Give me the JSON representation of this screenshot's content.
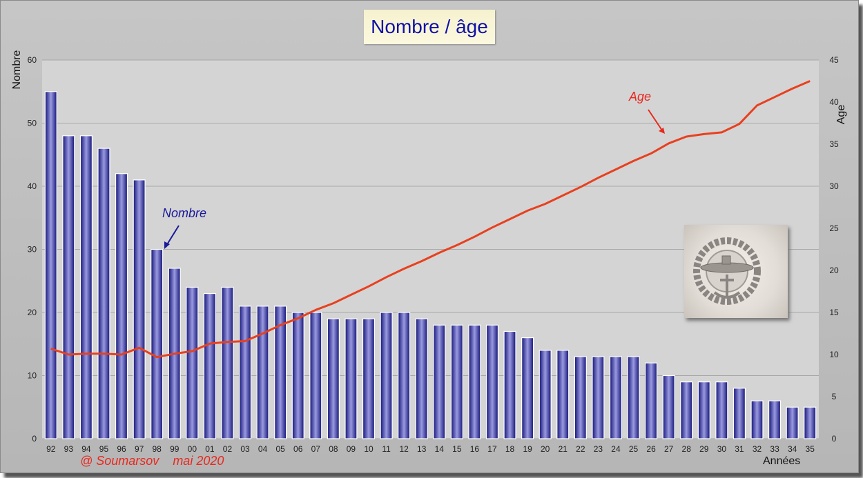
{
  "chart_data": {
    "type": "bar",
    "title": "Nombre / âge",
    "xlabel": "Années",
    "ylabel": "Nombre",
    "y2label": "Age",
    "ylim": [
      0,
      60
    ],
    "y2lim": [
      0,
      45
    ],
    "yticks": [
      0,
      10,
      20,
      30,
      40,
      50,
      60
    ],
    "y2ticks": [
      0,
      5,
      10,
      15,
      20,
      25,
      30,
      35,
      40,
      45
    ],
    "grid": true,
    "categories": [
      "92",
      "93",
      "94",
      "95",
      "96",
      "97",
      "98",
      "99",
      "00",
      "01",
      "02",
      "03",
      "04",
      "05",
      "06",
      "07",
      "08",
      "09",
      "10",
      "11",
      "12",
      "13",
      "14",
      "15",
      "16",
      "17",
      "18",
      "19",
      "20",
      "21",
      "22",
      "23",
      "24",
      "25",
      "26",
      "27",
      "28",
      "29",
      "30",
      "31",
      "32",
      "33",
      "34",
      "35"
    ],
    "series": [
      {
        "name": "Nombre",
        "type": "bar",
        "axis": "left",
        "color": "#1a1a8a",
        "values": [
          55,
          48,
          48,
          46,
          42,
          41,
          30,
          27,
          24,
          23,
          24,
          21,
          21,
          21,
          20,
          20,
          19,
          19,
          19,
          20,
          20,
          19,
          18,
          18,
          18,
          18,
          17,
          16,
          14,
          14,
          13,
          13,
          13,
          13,
          12,
          10,
          9,
          9,
          9,
          8,
          6,
          6,
          5,
          5
        ]
      },
      {
        "name": "Age",
        "type": "line",
        "axis": "right",
        "color": "#e8401e",
        "values": [
          10.7,
          10.0,
          10.1,
          10.1,
          10.0,
          10.8,
          9.7,
          10.1,
          10.4,
          11.3,
          11.5,
          11.6,
          12.5,
          13.5,
          14.3,
          15.3,
          16.1,
          17.1,
          18.1,
          19.2,
          20.2,
          21.1,
          22.1,
          23.0,
          24.0,
          25.1,
          26.1,
          27.1,
          27.9,
          28.9,
          29.9,
          31.0,
          32.0,
          33.0,
          33.9,
          35.1,
          35.9,
          36.2,
          36.4,
          37.4,
          39.6,
          40.6,
          41.6,
          42.5
        ]
      }
    ],
    "annotations": [
      {
        "text": "Nombre",
        "color": "#1a1a9a"
      },
      {
        "text": "Age",
        "color": "#e8281e"
      }
    ],
    "credit": "@ Soumarsov    mai 2020"
  }
}
